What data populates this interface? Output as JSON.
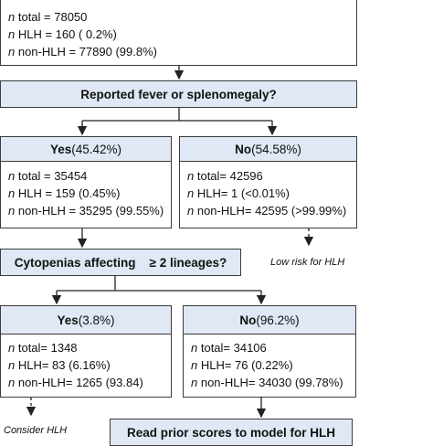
{
  "top": {
    "lines": [
      {
        "n": "n",
        "text": " total = 78050"
      },
      {
        "n": "n",
        "text": " HLH = 160 ( 0.2%)"
      },
      {
        "n": "n",
        "text": " non-HLH = 77890 (99.8%)"
      }
    ]
  },
  "q1": {
    "label": "Reported fever or splenomegaly?"
  },
  "yes1": {
    "label": "Yes",
    "pct": " (45.42%)",
    "lines": [
      {
        "n": "n",
        "text": " total = 35454"
      },
      {
        "n": "n",
        "text": " HLH = 159 (0.45%)"
      },
      {
        "n": "n",
        "text": " non-HLH = 35295 (99.55%)"
      }
    ]
  },
  "no1": {
    "label": "No",
    "pct": " (54.58%)",
    "lines": [
      {
        "n": "n",
        "text": " total= 42596"
      },
      {
        "n": "n",
        "text": " HLH= 1 (<0.01%)"
      },
      {
        "n": "n",
        "text": " non-HLH= 42595 (>99.99%)"
      }
    ]
  },
  "low_risk": "Low risk for HLH",
  "q2": {
    "label": "Cytopenias affecting    ≥ 2 lineages?"
  },
  "yes2": {
    "label": "Yes",
    "pct": " (3.8%)",
    "lines": [
      {
        "n": "n",
        "text": " total= 1348"
      },
      {
        "n": "n",
        "text": " HLH= 83 (6.16%)"
      },
      {
        "n": "n",
        "text": " non-HLH= 1265 (93.84)"
      }
    ]
  },
  "no2": {
    "label": "No",
    "pct": " (96.2%)",
    "lines": [
      {
        "n": "n",
        "text": " total= 34106"
      },
      {
        "n": "n",
        "text": " HLH= 76 (0.22%)"
      },
      {
        "n": "n",
        "text": " non-HLH= 34030 (99.78%)"
      }
    ]
  },
  "consider": "Consider HLH",
  "bottom_box": {
    "label": "Read prior scores to model for HLH"
  }
}
